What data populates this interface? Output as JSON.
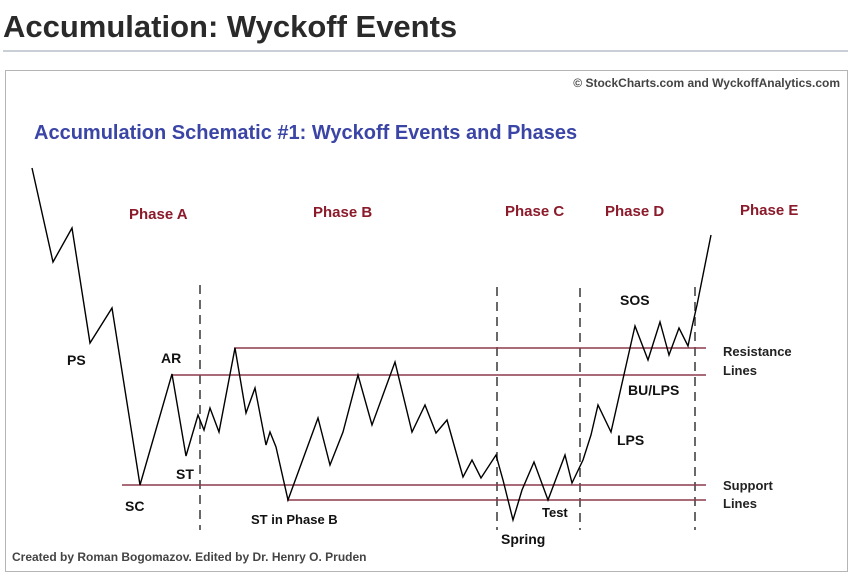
{
  "page": {
    "heading": "Accumulation: Wyckoff Events"
  },
  "figure": {
    "copyright": "© StockCharts.com and WyckoffAnalytics.com",
    "title": "Accumulation Schematic #1: Wyckoff Events and Phases",
    "credit": "Created by Roman Bogomazov. Edited by Dr. Henry O. Pruden",
    "phases": [
      {
        "label": "Phase A"
      },
      {
        "label": "Phase B"
      },
      {
        "label": "Phase C"
      },
      {
        "label": "Phase D"
      },
      {
        "label": "Phase E"
      }
    ],
    "events": {
      "ps": "PS",
      "sc": "SC",
      "ar": "AR",
      "st": "ST",
      "st_b": "ST in Phase B",
      "spring": "Spring",
      "test": "Test",
      "sos": "SOS",
      "bu_lps": "BU/LPS",
      "lps": "LPS"
    },
    "line_labels": {
      "resistance_1": "Resistance",
      "resistance_2": "Lines",
      "support_1": "Support",
      "support_2": "Lines"
    },
    "colors": {
      "title": "#3a45a6",
      "phase_label": "#8b1a2b",
      "level_line": "#8b3a4a",
      "price_line": "#000000"
    }
  }
}
